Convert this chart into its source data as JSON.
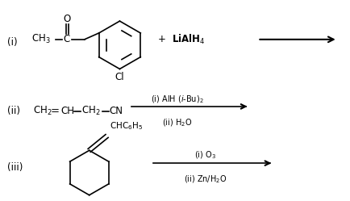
{
  "background_color": "#ffffff",
  "fig_width": 4.35,
  "fig_height": 2.49,
  "dpi": 100,
  "label_i": "(i)",
  "label_ii": "(ii)",
  "label_iii": "(iii)",
  "reagent_i": "+ LiAlH$_4$",
  "cond_ii_1": "(i) AlH (",
  "cond_ii_italic": "i",
  "cond_ii_2": "-Bu)$_2$",
  "cond_ii_3": "(ii) H$_2$O",
  "cond_iii_1": "(i) O$_3$",
  "cond_iii_2": "(ii) Zn/H$_2$O"
}
